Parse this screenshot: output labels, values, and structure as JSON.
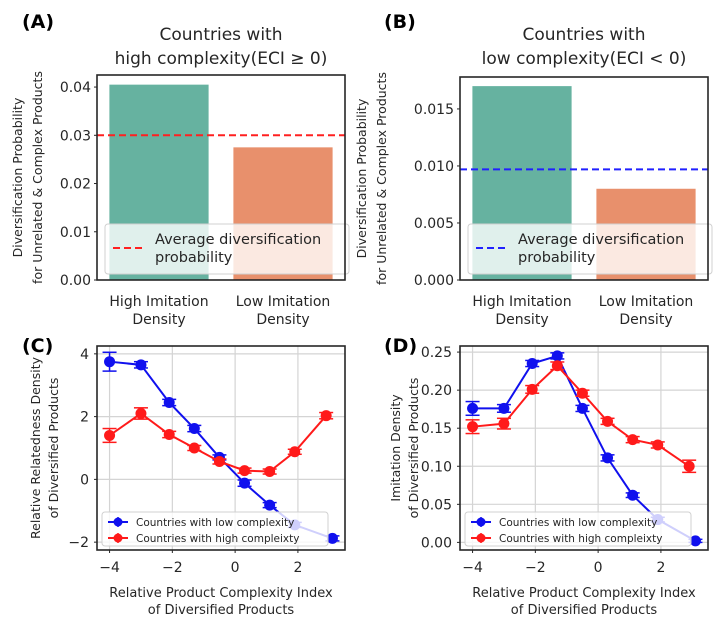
{
  "chart_data": [
    {
      "id": "A",
      "type": "bar",
      "panel_label": "(A)",
      "title": [
        "Countries with",
        "high complexity(ECI ≥ 0)"
      ],
      "ylabel": [
        "Diversification Probability",
        "for Unrelated & Complex Products"
      ],
      "xlabel": "",
      "categories": [
        [
          "High Imitation",
          "Density"
        ],
        [
          "Low Imitation",
          "Density"
        ]
      ],
      "values": [
        0.0405,
        0.0275
      ],
      "bar_colors": [
        "#66b2a0",
        "#e8906c"
      ],
      "ylim": [
        0,
        0.0425
      ],
      "yticks": [
        0.0,
        0.01,
        0.02,
        0.03,
        0.04
      ],
      "ytick_labels": [
        "0.00",
        "0.01",
        "0.02",
        "0.03",
        "0.04"
      ],
      "reference_line": {
        "value": 0.03,
        "color": "#ff2020",
        "style": "dashed",
        "label": [
          "Average diversification",
          "probability"
        ]
      },
      "legend_position": "lower-right",
      "grid": false
    },
    {
      "id": "B",
      "type": "bar",
      "panel_label": "(B)",
      "title": [
        "Countries with",
        "low complexity(ECI < 0)"
      ],
      "ylabel": [
        "Diversification Probability",
        "for Unrelated & Complex Products"
      ],
      "xlabel": "",
      "categories": [
        [
          "High Imitation",
          "Density"
        ],
        [
          "Low Imitation",
          "Density"
        ]
      ],
      "values": [
        0.017,
        0.008
      ],
      "bar_colors": [
        "#66b2a0",
        "#e8906c"
      ],
      "ylim": [
        0,
        0.0178
      ],
      "yticks": [
        0.0,
        0.005,
        0.01,
        0.015
      ],
      "ytick_labels": [
        "0.000",
        "0.005",
        "0.010",
        "0.015"
      ],
      "reference_line": {
        "value": 0.0097,
        "color": "#2020ff",
        "style": "dashed",
        "label": [
          "Average diversification",
          "probability"
        ]
      },
      "legend_position": "lower-right",
      "grid": false
    },
    {
      "id": "C",
      "type": "line",
      "panel_label": "(C)",
      "title": "",
      "ylabel": [
        "Relative Relatedness Density",
        "of Diversified Products"
      ],
      "xlabel": [
        "Relative Product Complexity Index",
        "of Diversified Products"
      ],
      "xlim": [
        -4.4,
        3.5
      ],
      "ylim": [
        -2.25,
        4.25
      ],
      "xticks": [
        -4,
        -2,
        0,
        2
      ],
      "xtick_labels": [
        "−4",
        "−2",
        "0",
        "2"
      ],
      "yticks": [
        -2,
        0,
        2,
        4
      ],
      "ytick_labels": [
        "−2",
        "0",
        "2",
        "4"
      ],
      "grid": true,
      "legend_position": "lower-left",
      "series": [
        {
          "name": "Countries with low complexity",
          "color": "#1010ee",
          "x": [
            -4.0,
            -3.0,
            -2.1,
            -1.3,
            -0.5,
            0.3,
            1.1,
            1.9,
            3.1
          ],
          "y": [
            3.75,
            3.65,
            2.45,
            1.62,
            0.7,
            -0.12,
            -0.82,
            -1.45,
            -1.88
          ],
          "err": [
            0.3,
            0.1,
            0.1,
            0.1,
            0.08,
            0.1,
            0.08,
            0.08,
            0.08
          ]
        },
        {
          "name": "Countries with high compleixty",
          "color": "#ff1a1a",
          "x": [
            -4.0,
            -3.0,
            -2.1,
            -1.3,
            -0.5,
            0.3,
            1.1,
            1.9,
            2.9
          ],
          "y": [
            1.4,
            2.1,
            1.43,
            1.0,
            0.57,
            0.28,
            0.25,
            0.88,
            2.03
          ],
          "err": [
            0.22,
            0.18,
            0.1,
            0.08,
            0.08,
            0.08,
            0.08,
            0.08,
            0.1
          ]
        }
      ]
    },
    {
      "id": "D",
      "type": "line",
      "panel_label": "(D)",
      "title": "",
      "ylabel": [
        "Imitation Density",
        "of Diversified Products"
      ],
      "xlabel": [
        "Relative Product Complexity Index",
        "of Diversified Products"
      ],
      "xlim": [
        -4.4,
        3.5
      ],
      "ylim": [
        -0.01,
        0.258
      ],
      "xticks": [
        -4,
        -2,
        0,
        2
      ],
      "xtick_labels": [
        "−4",
        "−2",
        "0",
        "2"
      ],
      "yticks": [
        0.0,
        0.05,
        0.1,
        0.15,
        0.2,
        0.25
      ],
      "ytick_labels": [
        "0.00",
        "0.05",
        "0.10",
        "0.15",
        "0.20",
        "0.25"
      ],
      "grid": true,
      "legend_position": "lower-left",
      "series": [
        {
          "name": "Countries with low complexity",
          "color": "#1010ee",
          "x": [
            -4.0,
            -3.0,
            -2.1,
            -1.3,
            -0.5,
            0.3,
            1.1,
            1.9,
            3.1
          ],
          "y": [
            0.176,
            0.176,
            0.235,
            0.245,
            0.176,
            0.111,
            0.062,
            0.03,
            0.002
          ],
          "err": [
            0.009,
            0.005,
            0.004,
            0.004,
            0.004,
            0.004,
            0.003,
            0.003,
            0.002
          ]
        },
        {
          "name": "Countries with high compleixty",
          "color": "#ff1a1a",
          "x": [
            -4.0,
            -3.0,
            -2.1,
            -1.3,
            -0.5,
            0.3,
            1.1,
            1.9,
            2.9
          ],
          "y": [
            0.152,
            0.156,
            0.201,
            0.232,
            0.196,
            0.159,
            0.135,
            0.128,
            0.1
          ],
          "err": [
            0.009,
            0.007,
            0.005,
            0.005,
            0.004,
            0.004,
            0.004,
            0.004,
            0.008
          ]
        }
      ]
    }
  ]
}
